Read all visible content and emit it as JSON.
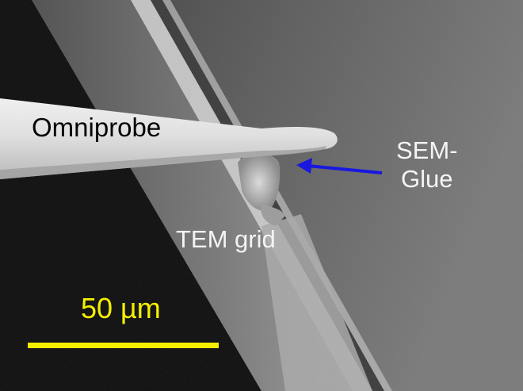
{
  "labels": {
    "probe": "Omniprobe",
    "glue_line1": "SEM-",
    "glue_line2": "Glue",
    "grid": "TEM grid"
  },
  "scale_bar": {
    "text": "50 µm",
    "color": "#f5f000"
  },
  "colors": {
    "arrow": "#1010e0",
    "label_dark": "#050505",
    "label_light": "#f4f4f4"
  }
}
